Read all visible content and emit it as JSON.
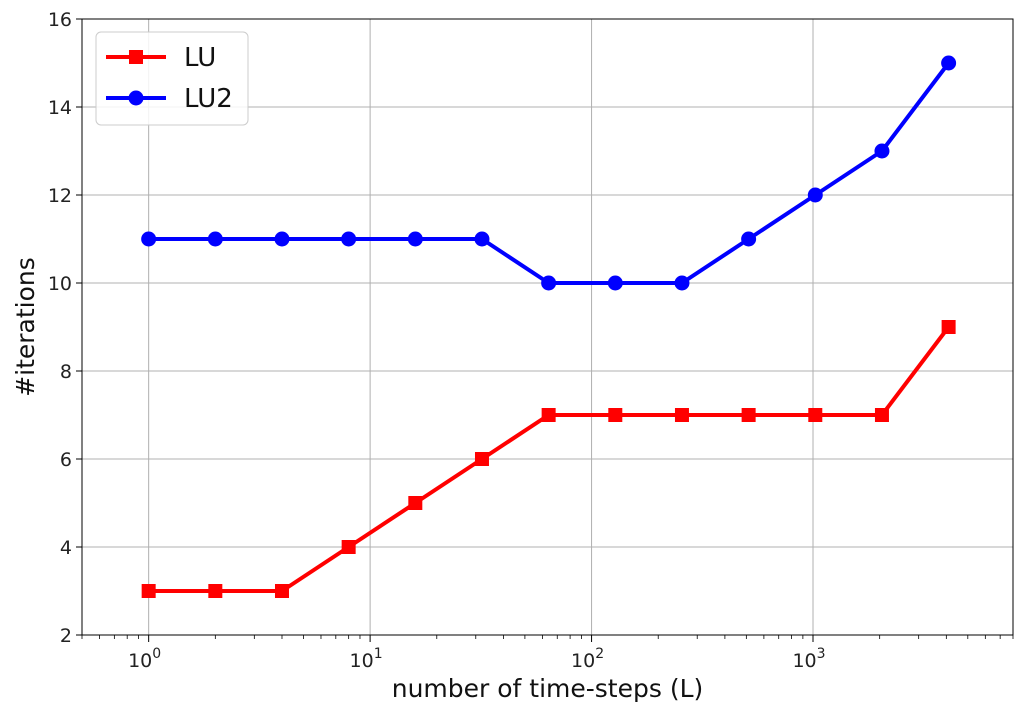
{
  "chart_data": {
    "type": "line",
    "title": "",
    "xlabel": "number of time-steps (L)",
    "ylabel": "#iterations",
    "xscale": "log",
    "xlim": [
      0.5,
      8000
    ],
    "ylim": [
      2,
      16
    ],
    "grid": true,
    "legend_position": "top-left",
    "x": [
      1,
      2,
      4,
      8,
      16,
      32,
      64,
      128,
      256,
      512,
      1024,
      2048,
      4096
    ],
    "series": [
      {
        "name": "LU",
        "color": "#ff0000",
        "marker": "square",
        "values": [
          3,
          3,
          3,
          4,
          5,
          6,
          7,
          7,
          7,
          7,
          7,
          7,
          9
        ]
      },
      {
        "name": "LU2",
        "color": "#0000ff",
        "marker": "circle",
        "values": [
          11,
          11,
          11,
          11,
          11,
          11,
          10,
          10,
          10,
          11,
          12,
          13,
          15
        ]
      }
    ],
    "yticks": [
      "2",
      "4",
      "6",
      "8",
      "10",
      "12",
      "14",
      "16"
    ],
    "xticks": [
      {
        "base": "10",
        "exp": "0"
      },
      {
        "base": "10",
        "exp": "1"
      },
      {
        "base": "10",
        "exp": "2"
      },
      {
        "base": "10",
        "exp": "3"
      }
    ]
  }
}
